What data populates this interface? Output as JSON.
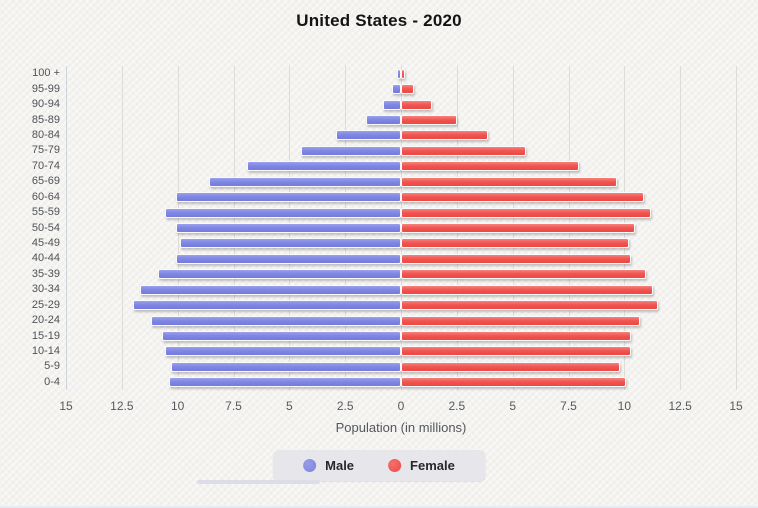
{
  "title": "United States - 2020",
  "chart_data": {
    "type": "bar",
    "variant": "population-pyramid",
    "title": "United States - 2020",
    "xlabel": "Population (in millions)",
    "ylabel": "",
    "grid": true,
    "legend_position": "bottom",
    "xlim_each_side": 15,
    "x_ticks": [
      "15",
      "12.5",
      "10",
      "7.5",
      "5",
      "2.5",
      "0",
      "2.5",
      "5",
      "7.5",
      "10",
      "12.5",
      "15"
    ],
    "categories_top_to_bottom": [
      "100 +",
      "95-99",
      "90-94",
      "85-89",
      "80-84",
      "75-79",
      "70-74",
      "65-69",
      "60-64",
      "55-59",
      "50-54",
      "45-49",
      "40-44",
      "35-39",
      "30-34",
      "25-29",
      "20-24",
      "15-19",
      "10-14",
      "5-9",
      "0-4"
    ],
    "series": [
      {
        "name": "Male",
        "side": "left",
        "color": "#8187e3",
        "values": [
          0.1,
          0.3,
          0.7,
          1.5,
          2.8,
          4.4,
          6.8,
          8.5,
          10.0,
          10.5,
          10.0,
          9.8,
          10.0,
          10.8,
          11.6,
          11.9,
          11.1,
          10.6,
          10.5,
          10.2,
          10.3
        ]
      },
      {
        "name": "Female",
        "side": "right",
        "color": "#f0534f",
        "values": [
          0.1,
          0.5,
          1.3,
          2.4,
          3.8,
          5.5,
          7.9,
          9.6,
          10.8,
          11.1,
          10.4,
          10.1,
          10.2,
          10.9,
          11.2,
          11.4,
          10.6,
          10.2,
          10.2,
          9.7,
          10.0
        ]
      }
    ]
  },
  "legend": {
    "items": [
      {
        "label": "Male",
        "color": "#8187e3"
      },
      {
        "label": "Female",
        "color": "#f0534f"
      }
    ]
  },
  "colors": {
    "background": "#f3f2ef",
    "male": "#8187e3",
    "female": "#f0534f",
    "grid": "#dddcd8",
    "text": "#54575c",
    "title": "#141414"
  }
}
